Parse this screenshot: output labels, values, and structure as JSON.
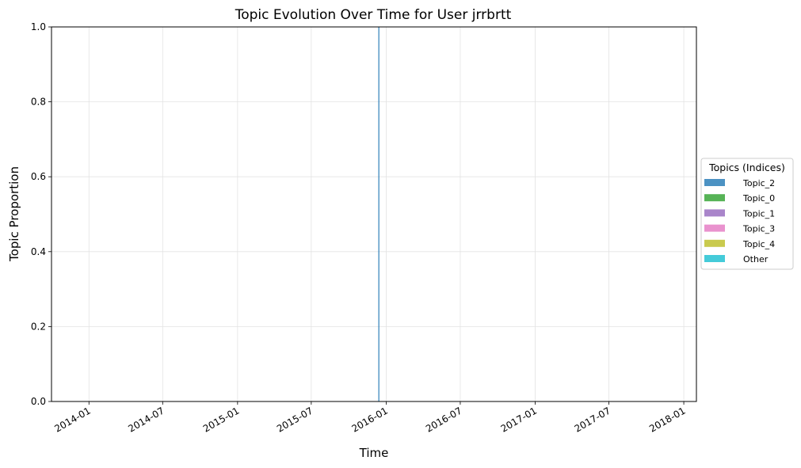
{
  "chart_data": {
    "type": "area",
    "stacked": true,
    "title": "Topic Evolution Over Time for User jrrbrtt",
    "xlabel": "Time",
    "ylabel": "Topic Proportion",
    "x_ticks": [
      "2014-01",
      "2014-07",
      "2015-01",
      "2015-07",
      "2016-01",
      "2016-07",
      "2017-01",
      "2017-07",
      "2018-01"
    ],
    "y_ticks": [
      "0.0",
      "0.2",
      "0.4",
      "0.6",
      "0.8",
      "1.0"
    ],
    "xlim": [
      "2013-10-01",
      "2018-02-01"
    ],
    "ylim": [
      0,
      1
    ],
    "grid": true,
    "legend": {
      "title": "Topics (Indices)",
      "placement": "right"
    },
    "x": [
      "2015-12-14"
    ],
    "series": [
      {
        "name": "Topic_2",
        "color": "#1f77b4",
        "values": [
          1.0
        ]
      },
      {
        "name": "Topic_0",
        "color": "#2ca02c",
        "values": [
          0.0
        ]
      },
      {
        "name": "Topic_1",
        "color": "#9467bd",
        "values": [
          0.0
        ]
      },
      {
        "name": "Topic_3",
        "color": "#e377c2",
        "values": [
          0.0
        ]
      },
      {
        "name": "Topic_4",
        "color": "#bcbd22",
        "values": [
          0.0
        ]
      },
      {
        "name": "Other",
        "color": "#17becf",
        "values": [
          0.0
        ]
      }
    ]
  }
}
